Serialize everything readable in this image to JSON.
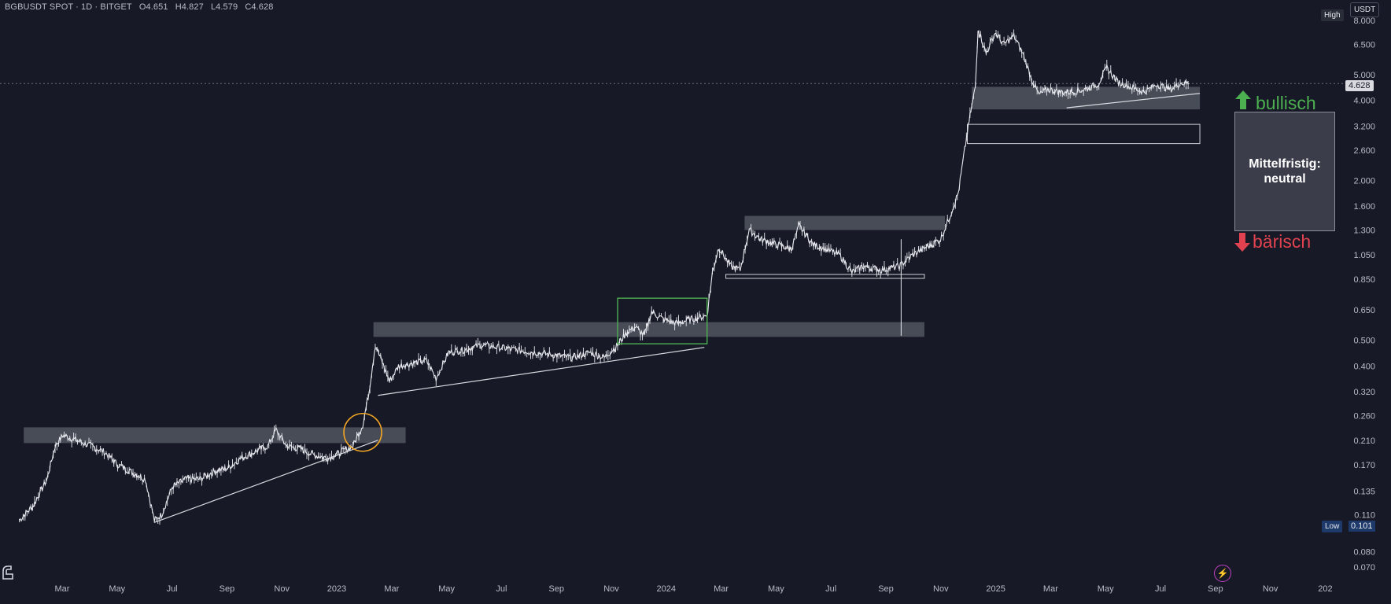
{
  "header": {
    "symbol": "BGBUSDT SPOT · 1D · BITGET",
    "open": "O4.651",
    "high": "H4.827",
    "low": "L4.579",
    "close": "C4.628"
  },
  "currency_label": "USDT",
  "high_label": "High",
  "low_label": "Low",
  "low_value": "0.101",
  "last_price": "4.628",
  "annotations": {
    "bullish": "bullisch",
    "neutral_line1": "Mittelfristig:",
    "neutral_line2": "neutral",
    "bearish": "bärisch"
  },
  "colors": {
    "background": "#171a26",
    "candle": "#e6e8ee",
    "zone": "#5a5d68",
    "bullish": "#4caf50",
    "bearish": "#e0424f",
    "circle": "#f5a623",
    "green_box": "#4caf50"
  },
  "icons": [
    "tradingview-logo-icon",
    "lightning-icon",
    "arrow-up-icon",
    "arrow-down-icon"
  ],
  "chart_data": {
    "type": "line",
    "title": "",
    "xlabel": "",
    "ylabel": "",
    "y_scale": "log",
    "ylim": [
      0.065,
      9.0
    ],
    "x_ticks": [
      "Mar",
      "May",
      "Jul",
      "Sep",
      "Nov",
      "2023",
      "Mar",
      "May",
      "Jul",
      "Sep",
      "Nov",
      "2024",
      "Mar",
      "May",
      "Jul",
      "Sep",
      "Nov",
      "2025",
      "Mar",
      "May",
      "Jul",
      "Sep",
      "Nov",
      "202"
    ],
    "y_ticks": [
      "8.000",
      "6.500",
      "5.000",
      "4.000",
      "3.200",
      "2.600",
      "2.000",
      "1.600",
      "1.300",
      "1.050",
      "0.850",
      "0.650",
      "0.500",
      "0.400",
      "0.320",
      "0.260",
      "0.210",
      "0.170",
      "0.135",
      "0.110",
      "0.080",
      "0.070"
    ],
    "series": [
      {
        "points": [
          [
            "2022-01-20",
            0.105
          ],
          [
            "2022-02-05",
            0.12
          ],
          [
            "2022-02-20",
            0.15
          ],
          [
            "2022-03-01",
            0.2
          ],
          [
            "2022-03-10",
            0.22
          ],
          [
            "2022-03-25",
            0.21
          ],
          [
            "2022-04-10",
            0.2
          ],
          [
            "2022-04-25",
            0.19
          ],
          [
            "2022-05-10",
            0.17
          ],
          [
            "2022-05-25",
            0.16
          ],
          [
            "2022-06-10",
            0.15
          ],
          [
            "2022-06-20",
            0.105
          ],
          [
            "2022-06-28",
            0.11
          ],
          [
            "2022-07-10",
            0.14
          ],
          [
            "2022-07-25",
            0.15
          ],
          [
            "2022-08-10",
            0.15
          ],
          [
            "2022-08-25",
            0.16
          ],
          [
            "2022-09-10",
            0.165
          ],
          [
            "2022-09-25",
            0.18
          ],
          [
            "2022-10-10",
            0.19
          ],
          [
            "2022-10-25",
            0.2
          ],
          [
            "2022-11-03",
            0.23
          ],
          [
            "2022-11-15",
            0.2
          ],
          [
            "2022-11-30",
            0.195
          ],
          [
            "2022-12-15",
            0.185
          ],
          [
            "2023-01-01",
            0.18
          ],
          [
            "2023-01-15",
            0.19
          ],
          [
            "2023-01-28",
            0.2
          ],
          [
            "2023-02-08",
            0.24
          ],
          [
            "2023-02-15",
            0.32
          ],
          [
            "2023-02-22",
            0.48
          ],
          [
            "2023-03-01",
            0.42
          ],
          [
            "2023-03-10",
            0.35
          ],
          [
            "2023-03-20",
            0.4
          ],
          [
            "2023-04-05",
            0.41
          ],
          [
            "2023-04-20",
            0.42
          ],
          [
            "2023-05-01",
            0.36
          ],
          [
            "2023-05-15",
            0.45
          ],
          [
            "2023-06-01",
            0.46
          ],
          [
            "2023-06-20",
            0.48
          ],
          [
            "2023-07-10",
            0.47
          ],
          [
            "2023-07-30",
            0.46
          ],
          [
            "2023-08-20",
            0.45
          ],
          [
            "2023-09-10",
            0.44
          ],
          [
            "2023-09-30",
            0.43
          ],
          [
            "2023-10-20",
            0.45
          ],
          [
            "2023-11-05",
            0.43
          ],
          [
            "2023-11-20",
            0.48
          ],
          [
            "2023-12-01",
            0.54
          ],
          [
            "2023-12-10",
            0.56
          ],
          [
            "2023-12-20",
            0.52
          ],
          [
            "2023-12-28",
            0.64
          ],
          [
            "2024-01-10",
            0.6
          ],
          [
            "2024-01-25",
            0.58
          ],
          [
            "2024-02-10",
            0.6
          ],
          [
            "2024-02-28",
            0.62
          ],
          [
            "2024-03-05",
            0.9
          ],
          [
            "2024-03-12",
            1.12
          ],
          [
            "2024-03-25",
            0.95
          ],
          [
            "2024-04-05",
            0.92
          ],
          [
            "2024-04-15",
            1.3
          ],
          [
            "2024-04-28",
            1.2
          ],
          [
            "2024-05-15",
            1.15
          ],
          [
            "2024-06-01",
            1.1
          ],
          [
            "2024-06-10",
            1.35
          ],
          [
            "2024-06-25",
            1.15
          ],
          [
            "2024-07-10",
            1.1
          ],
          [
            "2024-07-25",
            1.05
          ],
          [
            "2024-08-08",
            0.9
          ],
          [
            "2024-08-20",
            0.95
          ],
          [
            "2024-09-10",
            0.92
          ],
          [
            "2024-09-30",
            0.95
          ],
          [
            "2024-10-15",
            1.05
          ],
          [
            "2024-10-30",
            1.12
          ],
          [
            "2024-11-15",
            1.2
          ],
          [
            "2024-11-25",
            1.45
          ],
          [
            "2024-12-05",
            1.8
          ],
          [
            "2024-12-12",
            2.6
          ],
          [
            "2024-12-18",
            3.5
          ],
          [
            "2024-12-24",
            4.5
          ],
          [
            "2024-12-27",
            7.5
          ],
          [
            "2025-01-05",
            6.0
          ],
          [
            "2025-01-15",
            7.2
          ],
          [
            "2025-01-25",
            6.5
          ],
          [
            "2025-02-05",
            7.0
          ],
          [
            "2025-02-15",
            6.0
          ],
          [
            "2025-02-25",
            4.8
          ],
          [
            "2025-03-05",
            4.2
          ],
          [
            "2025-03-15",
            4.4
          ],
          [
            "2025-03-28",
            4.3
          ],
          [
            "2025-04-10",
            4.3
          ],
          [
            "2025-04-25",
            4.4
          ],
          [
            "2025-05-10",
            4.6
          ],
          [
            "2025-05-20",
            5.3
          ],
          [
            "2025-06-01",
            4.7
          ],
          [
            "2025-06-15",
            4.5
          ],
          [
            "2025-07-01",
            4.3
          ],
          [
            "2025-07-15",
            4.6
          ],
          [
            "2025-07-30",
            4.4
          ],
          [
            "2025-08-10",
            4.65
          ],
          [
            "2025-08-20",
            4.628
          ]
        ]
      }
    ]
  }
}
